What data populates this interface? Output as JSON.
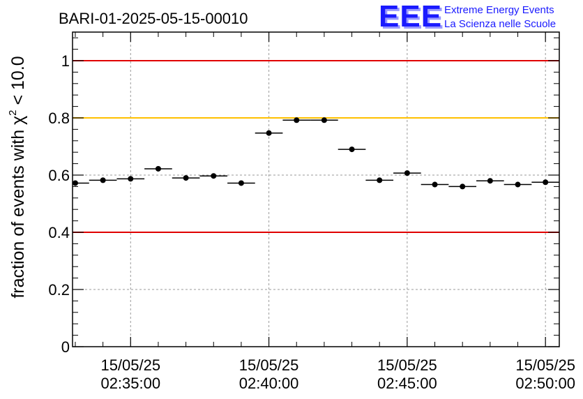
{
  "chart_data": {
    "type": "scatter",
    "title": "BARI-01-2025-05-15-00010",
    "ylabel": {
      "prefix": "fraction of events with ",
      "chi_symbol": "χ",
      "chi_superscript": "2",
      "suffix": " < 10.0"
    },
    "xlabel": "",
    "ylim": [
      0,
      1.1
    ],
    "xlim_minutes": [
      2.9,
      20.5
    ],
    "yticks": [
      {
        "value": 0,
        "label": "0"
      },
      {
        "value": 0.2,
        "label": "0.2"
      },
      {
        "value": 0.4,
        "label": "0.4"
      },
      {
        "value": 0.6,
        "label": "0.6"
      },
      {
        "value": 0.8,
        "label": "0.8"
      },
      {
        "value": 1,
        "label": "1"
      }
    ],
    "xticks": [
      {
        "minute": 5,
        "date": "15/05/25",
        "time": "02:35:00"
      },
      {
        "minute": 10,
        "date": "15/05/25",
        "time": "02:40:00"
      },
      {
        "minute": 15,
        "date": "15/05/25",
        "time": "02:45:00"
      },
      {
        "minute": 20,
        "date": "15/05/25",
        "time": "02:50:00"
      }
    ],
    "reference_lines": [
      {
        "value": 1.0,
        "color": "#e00000"
      },
      {
        "value": 0.8,
        "color": "#ffc000"
      },
      {
        "value": 0.4,
        "color": "#e00000"
      }
    ],
    "bin_width_minutes": 1,
    "points": [
      {
        "minute": 3.0,
        "value": 0.572
      },
      {
        "minute": 4.0,
        "value": 0.582
      },
      {
        "minute": 5.0,
        "value": 0.587
      },
      {
        "minute": 6.0,
        "value": 0.622
      },
      {
        "minute": 7.0,
        "value": 0.59
      },
      {
        "minute": 8.0,
        "value": 0.597
      },
      {
        "minute": 9.0,
        "value": 0.572
      },
      {
        "minute": 10.0,
        "value": 0.747
      },
      {
        "minute": 11.0,
        "value": 0.792
      },
      {
        "minute": 12.0,
        "value": 0.792
      },
      {
        "minute": 13.0,
        "value": 0.69
      },
      {
        "minute": 14.0,
        "value": 0.582
      },
      {
        "minute": 15.0,
        "value": 0.607
      },
      {
        "minute": 16.0,
        "value": 0.567
      },
      {
        "minute": 17.0,
        "value": 0.56
      },
      {
        "minute": 18.0,
        "value": 0.58
      },
      {
        "minute": 19.0,
        "value": 0.567
      },
      {
        "minute": 20.0,
        "value": 0.575
      }
    ],
    "grid": true,
    "legend": "none"
  },
  "logo": {
    "mark": "EEE",
    "line1": "Extreme Energy Events",
    "line2": "La Scienza nelle Scuole",
    "color": "#1a1aff"
  }
}
